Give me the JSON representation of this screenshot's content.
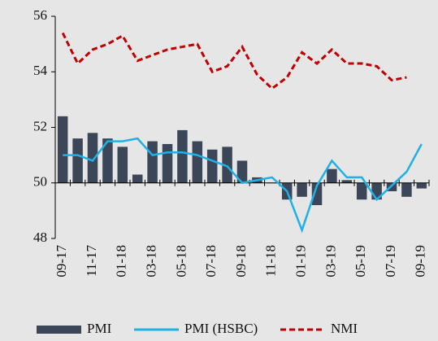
{
  "chart_data": {
    "type": "bar_line",
    "categories": [
      "09-17",
      null,
      "11-17",
      null,
      "01-18",
      null,
      "03-18",
      null,
      "05-18",
      null,
      "07-18",
      null,
      "09-18",
      null,
      "11-18",
      null,
      "01-19",
      null,
      "03-19",
      null,
      "05-19",
      null,
      "07-19",
      null,
      "09-19"
    ],
    "series": [
      {
        "name": "PMI",
        "type": "bar",
        "color": "#3b4658",
        "values": [
          52.4,
          51.6,
          51.8,
          51.6,
          51.3,
          50.3,
          51.5,
          51.4,
          51.9,
          51.5,
          51.2,
          51.3,
          50.8,
          50.2,
          50.0,
          49.4,
          49.5,
          49.2,
          50.5,
          50.1,
          49.4,
          49.4,
          49.7,
          49.5,
          49.8
        ]
      },
      {
        "name": "PMI (HSBC)",
        "type": "line",
        "color": "#1fb1e6",
        "values": [
          51.0,
          51.0,
          50.8,
          51.5,
          51.5,
          51.6,
          51.0,
          51.1,
          51.1,
          51.0,
          50.8,
          50.6,
          50.0,
          50.1,
          50.2,
          49.7,
          48.3,
          49.9,
          50.8,
          50.2,
          50.2,
          49.4,
          49.9,
          50.4,
          51.4
        ]
      },
      {
        "name": "NMI",
        "type": "dashed",
        "color": "#c00000",
        "values": [
          55.4,
          54.3,
          54.8,
          55.0,
          55.3,
          54.4,
          54.6,
          54.8,
          54.9,
          55.0,
          54.0,
          54.2,
          54.9,
          53.9,
          53.4,
          53.8,
          54.7,
          54.3,
          54.8,
          54.3,
          54.3,
          54.2,
          53.7,
          53.8,
          null
        ]
      }
    ],
    "ylim": [
      48,
      56
    ],
    "yticks": [
      48,
      50,
      52,
      54,
      56
    ],
    "bar_base": 50
  }
}
